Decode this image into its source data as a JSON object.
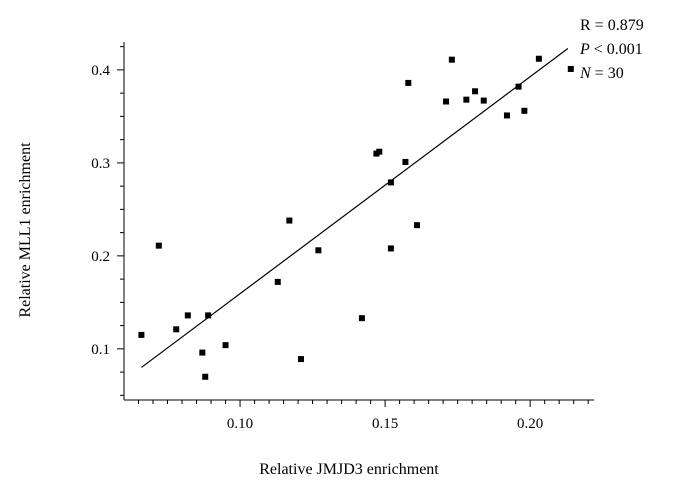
{
  "chart_data": {
    "type": "scatter",
    "xlabel": "Relative JMJD3 enrichment",
    "ylabel": "Relative MLL1 enrichment",
    "xlim": [
      0.06,
      0.222
    ],
    "ylim": [
      0.045,
      0.43
    ],
    "x_ticks": [
      0.1,
      0.15,
      0.2
    ],
    "x_tick_labels": [
      "0.10",
      "0.15",
      "0.20"
    ],
    "y_ticks": [
      0.1,
      0.2,
      0.3,
      0.4
    ],
    "y_tick_labels": [
      "0.1",
      "0.2",
      "0.3",
      "0.4"
    ],
    "grid": false,
    "legend": "none",
    "annotations": {
      "r": "R = 0.879",
      "p_symbol": "P",
      "p_value": " < 0.001",
      "n_symbol": "N",
      "n_value": " = 30"
    },
    "points": [
      {
        "x": 0.066,
        "y": 0.115
      },
      {
        "x": 0.072,
        "y": 0.211
      },
      {
        "x": 0.078,
        "y": 0.121
      },
      {
        "x": 0.082,
        "y": 0.136
      },
      {
        "x": 0.087,
        "y": 0.096
      },
      {
        "x": 0.088,
        "y": 0.07
      },
      {
        "x": 0.089,
        "y": 0.136
      },
      {
        "x": 0.095,
        "y": 0.104
      },
      {
        "x": 0.113,
        "y": 0.172
      },
      {
        "x": 0.117,
        "y": 0.238
      },
      {
        "x": 0.121,
        "y": 0.089
      },
      {
        "x": 0.127,
        "y": 0.206
      },
      {
        "x": 0.142,
        "y": 0.133
      },
      {
        "x": 0.147,
        "y": 0.31
      },
      {
        "x": 0.148,
        "y": 0.312
      },
      {
        "x": 0.152,
        "y": 0.279
      },
      {
        "x": 0.152,
        "y": 0.208
      },
      {
        "x": 0.157,
        "y": 0.301
      },
      {
        "x": 0.158,
        "y": 0.386
      },
      {
        "x": 0.161,
        "y": 0.233
      },
      {
        "x": 0.171,
        "y": 0.366
      },
      {
        "x": 0.173,
        "y": 0.411
      },
      {
        "x": 0.178,
        "y": 0.368
      },
      {
        "x": 0.181,
        "y": 0.377
      },
      {
        "x": 0.184,
        "y": 0.367
      },
      {
        "x": 0.192,
        "y": 0.351
      },
      {
        "x": 0.196,
        "y": 0.382
      },
      {
        "x": 0.198,
        "y": 0.356
      },
      {
        "x": 0.203,
        "y": 0.412
      },
      {
        "x": 0.214,
        "y": 0.401
      }
    ],
    "fit_line": {
      "x": [
        0.066,
        0.213
      ],
      "y": [
        0.08,
        0.423
      ]
    },
    "colors": {
      "marker": "#000000",
      "line": "#000000",
      "axis": "#000000"
    }
  }
}
